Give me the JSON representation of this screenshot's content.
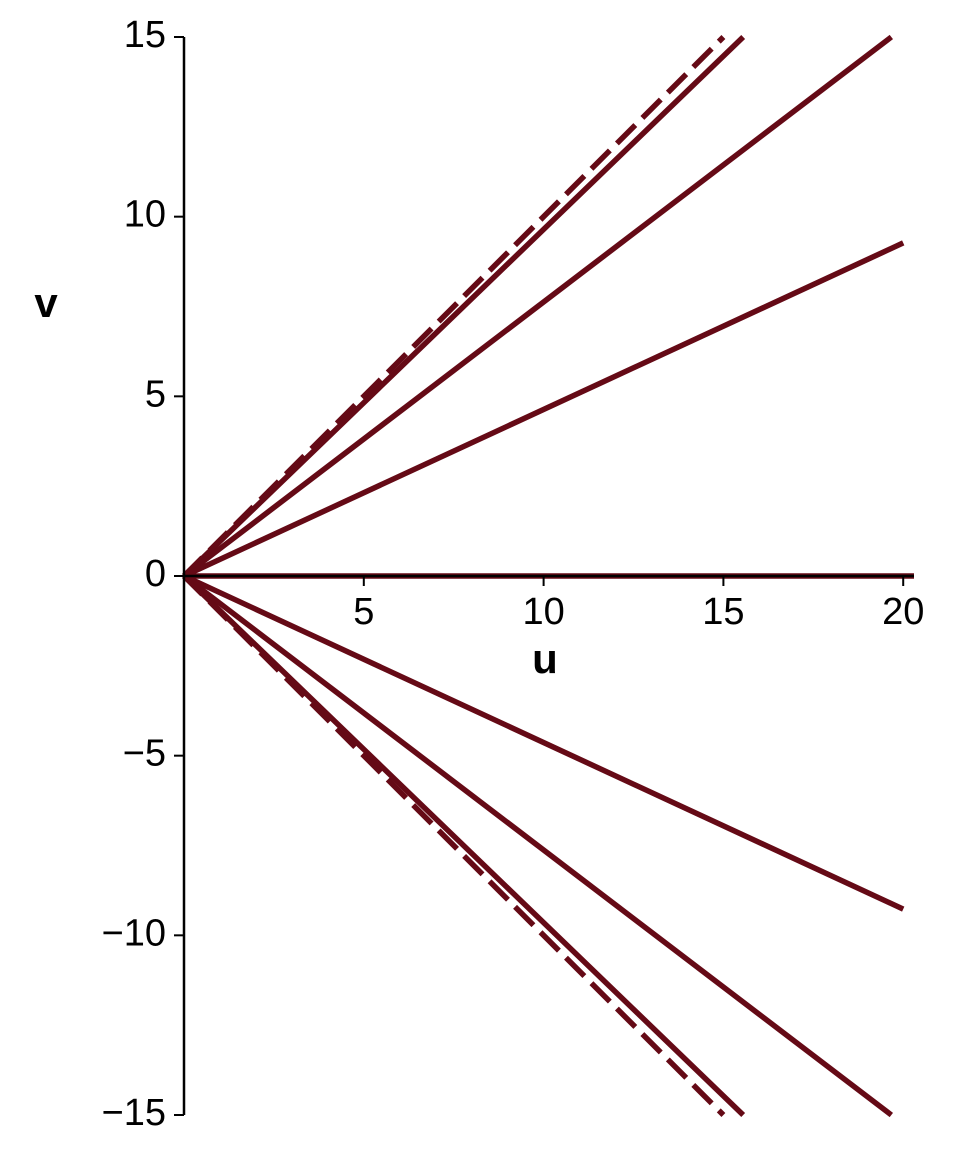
{
  "chart_data": {
    "type": "line",
    "x_label": "u",
    "y_label": "v",
    "xlim": [
      0,
      20.3
    ],
    "ylim": [
      -15,
      15
    ],
    "xticks": [
      5,
      10,
      15,
      20
    ],
    "yticks": [
      {
        "value": -15,
        "label": "−15"
      },
      {
        "value": -10,
        "label": "−10"
      },
      {
        "value": -5,
        "label": "−5"
      },
      0,
      5,
      10,
      15
    ],
    "series": [
      {
        "color": "#650a16",
        "dashed": true,
        "x": [
          0,
          15
        ],
        "values": [
          0,
          15
        ]
      },
      {
        "color": "#650a16",
        "dashed": true,
        "x": [
          0,
          15
        ],
        "values": [
          0,
          -15
        ]
      },
      {
        "color": "#650a16",
        "dashed": false,
        "x": [
          0,
          15.55
        ],
        "values": [
          0,
          15
        ]
      },
      {
        "color": "#650a16",
        "dashed": false,
        "x": [
          0,
          15.55
        ],
        "values": [
          0,
          -15
        ]
      },
      {
        "color": "#650a16",
        "dashed": false,
        "x": [
          0,
          19.67
        ],
        "values": [
          0,
          15
        ]
      },
      {
        "color": "#650a16",
        "dashed": false,
        "x": [
          0,
          19.67
        ],
        "values": [
          0,
          -15
        ]
      },
      {
        "color": "#650a16",
        "dashed": false,
        "x": [
          0,
          20
        ],
        "values": [
          0,
          9.27
        ]
      },
      {
        "color": "#650a16",
        "dashed": false,
        "x": [
          0,
          20
        ],
        "values": [
          0,
          -9.27
        ]
      },
      {
        "color": "#650a16",
        "dashed": false,
        "x": [
          0,
          20.3
        ],
        "values": [
          0,
          0
        ]
      }
    ]
  }
}
